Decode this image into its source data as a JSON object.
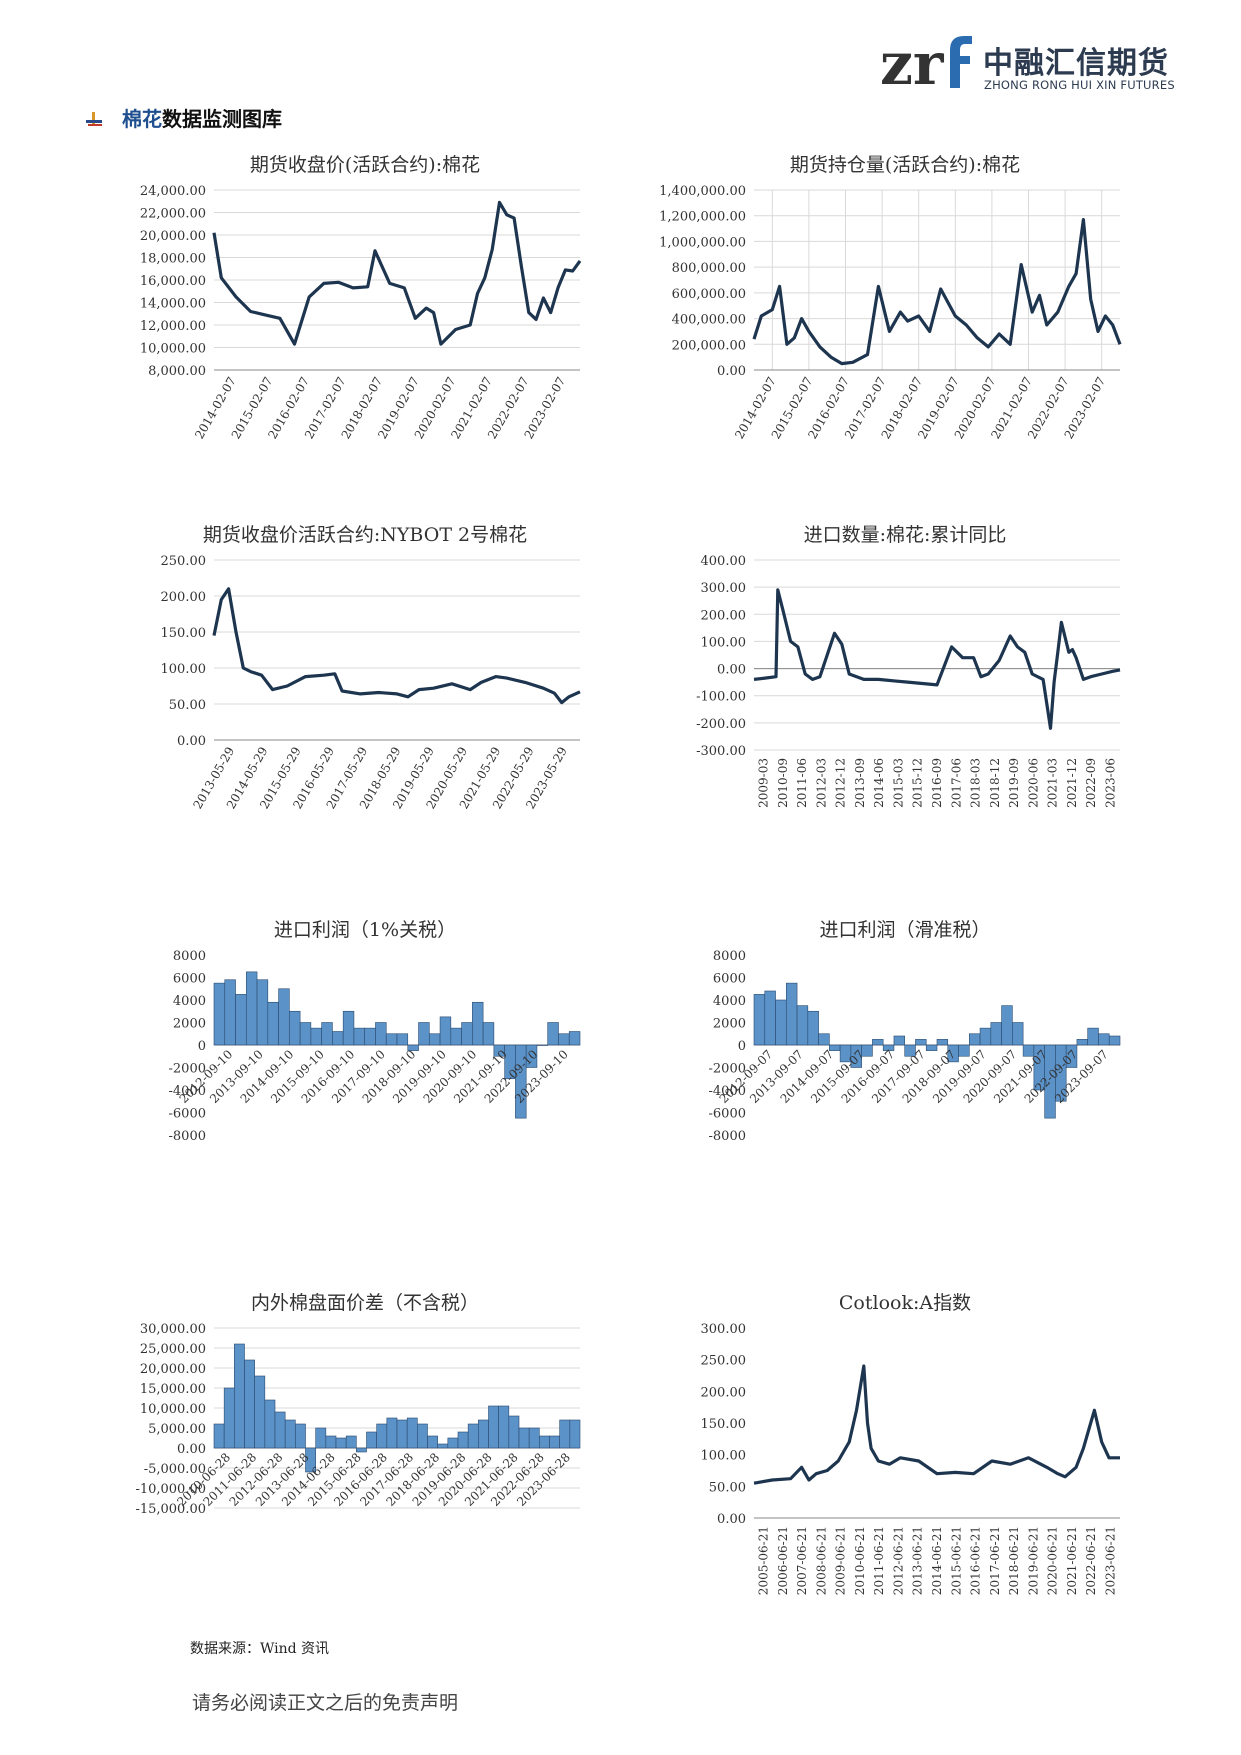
{
  "logo": {
    "cn": "中融汇信期货",
    "en": "ZHONG RONG HUI XIN FUTURES",
    "accent": "#2b6cb0",
    "gray": "#9aa3ad"
  },
  "section": {
    "highlight": "棉花",
    "rest": "数据监测图库"
  },
  "footer": {
    "source": "数据来源：Wind 资讯",
    "disclaimer": "请务必阅读正文之后的免责声明"
  },
  "colors": {
    "line": "#1e3550",
    "bar": "#5b92c8",
    "bar_dark": "#2a4a6e",
    "grid": "#d9d9d9"
  },
  "charts": [
    {
      "id": "c1",
      "title": "期货收盘价(活跃合约):棉花",
      "type": "line",
      "ylim": [
        8000,
        24000
      ],
      "yticks": [
        8000,
        10000,
        12000,
        14000,
        16000,
        18000,
        20000,
        22000,
        24000
      ],
      "decimals": 2,
      "xticks": [
        "2014-02-07",
        "2015-02-07",
        "2016-02-07",
        "2017-02-07",
        "2018-02-07",
        "2019-02-07",
        "2020-02-07",
        "2021-02-07",
        "2022-02-07",
        "2023-02-07"
      ],
      "xrot": -60,
      "grid": true
    },
    {
      "id": "c2",
      "title": "期货持仓量(活跃合约):棉花",
      "type": "line",
      "ylim": [
        0,
        1400000
      ],
      "yticks": [
        0,
        200000,
        400000,
        600000,
        800000,
        1000000,
        1200000,
        1400000
      ],
      "decimals": 2,
      "xticks": [
        "2014-02-07",
        "2015-02-07",
        "2016-02-07",
        "2017-02-07",
        "2018-02-07",
        "2019-02-07",
        "2020-02-07",
        "2021-02-07",
        "2022-02-07",
        "2023-02-07"
      ],
      "xrot": -60,
      "grid": true,
      "vgrid": true
    },
    {
      "id": "c3",
      "title": "期货收盘价活跃合约:NYBOT 2号棉花",
      "type": "line",
      "ylim": [
        0,
        250
      ],
      "yticks": [
        0,
        50,
        100,
        150,
        200,
        250
      ],
      "decimals": 2,
      "xticks": [
        "2013-05-29",
        "2014-05-29",
        "2015-05-29",
        "2016-05-29",
        "2017-05-29",
        "2018-05-29",
        "2019-05-29",
        "2020-05-29",
        "2021-05-29",
        "2022-05-29",
        "2023-05-29"
      ],
      "xrot": -60,
      "grid": true
    },
    {
      "id": "c4",
      "title": "进口数量:棉花:累计同比",
      "type": "line",
      "ylim": [
        -300,
        400
      ],
      "yticks": [
        -300,
        -200,
        -100,
        0,
        100,
        200,
        300,
        400
      ],
      "decimals": 2,
      "xticks": [
        "2009-03",
        "2010-09",
        "2011-06",
        "2012-03",
        "2012-12",
        "2013-09",
        "2014-06",
        "2015-03",
        "2015-12",
        "2016-09",
        "2017-06",
        "2018-03",
        "2018-12",
        "2019-09",
        "2020-06",
        "2021-03",
        "2021-12",
        "2022-09",
        "2023-06"
      ],
      "xrot": -90,
      "xaxis_at_zero": true,
      "grid": true
    },
    {
      "id": "c5",
      "title": "进口利润（1%关税）",
      "type": "bar",
      "ylim": [
        -8000,
        8000
      ],
      "yticks": [
        -8000,
        -6000,
        -4000,
        -2000,
        0,
        2000,
        4000,
        6000,
        8000
      ],
      "decimals": 0,
      "xticks": [
        "2012-09-10",
        "2013-09-10",
        "2014-09-10",
        "2015-09-10",
        "2016-09-10",
        "2017-09-10",
        "2018-09-10",
        "2019-09-10",
        "2020-09-10",
        "2021-09-10",
        "2022-09-10",
        "2023-09-10"
      ],
      "xrot": -45,
      "xaxis_at_zero": true,
      "grid": false
    },
    {
      "id": "c6",
      "title": "进口利润（滑准税）",
      "type": "bar",
      "ylim": [
        -8000,
        8000
      ],
      "yticks": [
        -8000,
        -6000,
        -4000,
        -2000,
        0,
        2000,
        4000,
        6000,
        8000
      ],
      "decimals": 0,
      "xticks": [
        "2012-09-07",
        "2013-09-07",
        "2014-09-07",
        "2015-09-07",
        "2016-09-07",
        "2017-09-07",
        "2018-09-07",
        "2019-09-07",
        "2020-09-07",
        "2021-09-07",
        "2022-09-07",
        "2023-09-07"
      ],
      "xrot": -45,
      "xaxis_at_zero": true,
      "grid": false
    },
    {
      "id": "c7",
      "title": "内外棉盘面价差（不含税）",
      "type": "bar",
      "ylim": [
        -15000,
        30000
      ],
      "yticks": [
        -15000,
        -10000,
        -5000,
        0,
        5000,
        10000,
        15000,
        20000,
        25000,
        30000
      ],
      "decimals": 2,
      "xticks": [
        "2010-06-28",
        "2011-06-28",
        "2012-06-28",
        "2013-06-28",
        "2014-06-28",
        "2015-06-28",
        "2016-06-28",
        "2017-06-28",
        "2018-06-28",
        "2019-06-28",
        "2020-06-28",
        "2021-06-28",
        "2022-06-28",
        "2023-06-28"
      ],
      "xrot": -45,
      "xaxis_at_zero": true,
      "grid": true
    },
    {
      "id": "c8",
      "title": "Cotlook:A指数",
      "type": "line",
      "ylim": [
        0,
        300
      ],
      "yticks": [
        0,
        50,
        100,
        150,
        200,
        250,
        300
      ],
      "decimals": 2,
      "xticks": [
        "2005-06-21",
        "2006-06-21",
        "2007-06-21",
        "2008-06-21",
        "2009-06-21",
        "2010-06-21",
        "2011-06-21",
        "2012-06-21",
        "2013-06-21",
        "2014-06-21",
        "2015-06-21",
        "2016-06-21",
        "2017-06-21",
        "2018-06-21",
        "2019-06-21",
        "2020-06-21",
        "2021-06-21",
        "2022-06-21",
        "2023-06-21"
      ],
      "xrot": -90,
      "grid": false
    }
  ],
  "chart_data": [
    {
      "type": "line",
      "title": "期货收盘价(活跃合约):棉花",
      "ylim": [
        8000,
        24000
      ],
      "x": [
        0,
        0.02,
        0.06,
        0.1,
        0.14,
        0.18,
        0.22,
        0.26,
        0.3,
        0.34,
        0.38,
        0.42,
        0.44,
        0.48,
        0.52,
        0.55,
        0.58,
        0.6,
        0.62,
        0.66,
        0.7,
        0.72,
        0.74,
        0.76,
        0.78,
        0.8,
        0.82,
        0.84,
        0.86,
        0.88,
        0.9,
        0.92,
        0.94,
        0.96,
        0.98,
        1
      ],
      "y": [
        20200,
        16200,
        14500,
        13200,
        12900,
        12600,
        10300,
        14500,
        15700,
        15800,
        15300,
        15400,
        18600,
        15700,
        15300,
        12600,
        13500,
        13100,
        10300,
        11600,
        12000,
        14800,
        16200,
        18700,
        22900,
        21800,
        21500,
        17200,
        13100,
        12500,
        14400,
        13100,
        15300,
        16900,
        16800,
        17700
      ]
    },
    {
      "type": "line",
      "title": "期货持仓量(活跃合约):棉花",
      "ylim": [
        0,
        1400000
      ],
      "x": [
        0,
        0.02,
        0.05,
        0.07,
        0.09,
        0.11,
        0.13,
        0.15,
        0.18,
        0.21,
        0.24,
        0.27,
        0.31,
        0.34,
        0.37,
        0.4,
        0.42,
        0.45,
        0.48,
        0.51,
        0.55,
        0.58,
        0.61,
        0.64,
        0.67,
        0.7,
        0.73,
        0.76,
        0.78,
        0.8,
        0.83,
        0.86,
        0.88,
        0.9,
        0.92,
        0.94,
        0.96,
        0.98,
        1
      ],
      "y": [
        240000,
        420000,
        470000,
        650000,
        200000,
        250000,
        400000,
        300000,
        180000,
        100000,
        50000,
        60000,
        120000,
        650000,
        300000,
        450000,
        380000,
        420000,
        300000,
        630000,
        420000,
        350000,
        250000,
        180000,
        280000,
        200000,
        820000,
        450000,
        580000,
        350000,
        450000,
        650000,
        750000,
        1170000,
        550000,
        300000,
        420000,
        350000,
        200000
      ]
    },
    {
      "type": "line",
      "title": "期货收盘价活跃合约:NYBOT 2号棉花",
      "ylim": [
        0,
        250
      ],
      "x": [
        0,
        0.02,
        0.04,
        0.06,
        0.08,
        0.1,
        0.13,
        0.16,
        0.2,
        0.25,
        0.3,
        0.33,
        0.35,
        0.4,
        0.45,
        0.5,
        0.53,
        0.56,
        0.6,
        0.65,
        0.7,
        0.73,
        0.77,
        0.8,
        0.85,
        0.9,
        0.93,
        0.95,
        0.97,
        1
      ],
      "y": [
        145,
        195,
        210,
        150,
        100,
        95,
        90,
        70,
        75,
        88,
        90,
        92,
        68,
        64,
        66,
        64,
        60,
        70,
        72,
        78,
        70,
        80,
        88,
        86,
        80,
        72,
        65,
        52,
        60,
        67
      ]
    },
    {
      "type": "line",
      "title": "进口数量:棉花:累计同比",
      "ylim": [
        -300,
        400
      ],
      "x": [
        0,
        0.03,
        0.06,
        0.065,
        0.08,
        0.1,
        0.12,
        0.14,
        0.16,
        0.18,
        0.2,
        0.22,
        0.24,
        0.26,
        0.3,
        0.34,
        0.38,
        0.42,
        0.46,
        0.5,
        0.54,
        0.57,
        0.6,
        0.62,
        0.64,
        0.67,
        0.7,
        0.72,
        0.74,
        0.76,
        0.79,
        0.81,
        0.82,
        0.83,
        0.84,
        0.86,
        0.87,
        0.88,
        0.9,
        0.92,
        0.95,
        0.98,
        1
      ],
      "y": [
        -40,
        -35,
        -30,
        290,
        210,
        100,
        80,
        -20,
        -40,
        -30,
        50,
        130,
        90,
        -20,
        -40,
        -40,
        -45,
        -50,
        -55,
        -60,
        80,
        40,
        40,
        -30,
        -20,
        30,
        120,
        80,
        60,
        -20,
        -40,
        -220,
        -50,
        60,
        170,
        60,
        70,
        40,
        -40,
        -30,
        -20,
        -10,
        -5
      ]
    },
    {
      "type": "bar",
      "title": "进口利润（1%关税）",
      "ylim": [
        -8000,
        8000
      ],
      "x": [
        0,
        0.04,
        0.08,
        0.1,
        0.12,
        0.15,
        0.18,
        0.22,
        0.26,
        0.3,
        0.34,
        0.38,
        0.42,
        0.46,
        0.5,
        0.54,
        0.58,
        0.62,
        0.66,
        0.7,
        0.74,
        0.78,
        0.8,
        0.82,
        0.84,
        0.86,
        0.87,
        0.88,
        0.9,
        0.92,
        0.94,
        0.96,
        0.98,
        1
      ],
      "y": [
        5500,
        5800,
        4500,
        6500,
        5800,
        3800,
        5000,
        3000,
        2000,
        1500,
        2000,
        1200,
        3000,
        1500,
        1500,
        2000,
        1000,
        1000,
        -500,
        2000,
        1000,
        2500,
        1500,
        2000,
        3800,
        2000,
        -1000,
        -3000,
        -6500,
        -2000,
        0,
        2000,
        1000,
        1200
      ]
    },
    {
      "type": "bar",
      "title": "进口利润（滑准税）",
      "ylim": [
        -8000,
        8000
      ],
      "x": [
        0,
        0.04,
        0.08,
        0.1,
        0.12,
        0.15,
        0.18,
        0.22,
        0.26,
        0.3,
        0.34,
        0.38,
        0.42,
        0.46,
        0.5,
        0.54,
        0.58,
        0.62,
        0.66,
        0.7,
        0.74,
        0.78,
        0.8,
        0.82,
        0.84,
        0.86,
        0.87,
        0.88,
        0.9,
        0.92,
        0.94,
        0.96,
        0.98,
        1
      ],
      "y": [
        4500,
        4800,
        4000,
        5500,
        3500,
        3000,
        1000,
        -500,
        -1500,
        -2000,
        -1000,
        500,
        -500,
        800,
        -1000,
        500,
        -500,
        500,
        -1500,
        -1000,
        1000,
        1500,
        2000,
        3500,
        2000,
        -1000,
        -4000,
        -6500,
        -5000,
        -2000,
        500,
        1500,
        1000,
        800
      ]
    },
    {
      "type": "bar",
      "title": "内外棉盘面价差（不含税）",
      "ylim": [
        -15000,
        30000
      ],
      "x": [
        0,
        0.03,
        0.05,
        0.06,
        0.08,
        0.1,
        0.13,
        0.16,
        0.2,
        0.22,
        0.24,
        0.26,
        0.3,
        0.34,
        0.38,
        0.42,
        0.44,
        0.46,
        0.5,
        0.54,
        0.58,
        0.62,
        0.66,
        0.68,
        0.7,
        0.72,
        0.76,
        0.8,
        0.84,
        0.86,
        0.88,
        0.9,
        0.92,
        0.94,
        0.96,
        1
      ],
      "y": [
        6000,
        15000,
        26000,
        22000,
        18000,
        12000,
        9000,
        7000,
        6000,
        -6000,
        5000,
        3000,
        2500,
        3000,
        -1000,
        4000,
        6000,
        7500,
        7000,
        7500,
        6000,
        3000,
        1000,
        2500,
        4000,
        6000,
        7000,
        10500,
        10500,
        8000,
        5000,
        5000,
        3000,
        3000,
        7000,
        7000
      ]
    },
    {
      "type": "line",
      "title": "Cotlook:A指数",
      "ylim": [
        0,
        300
      ],
      "x": [
        0,
        0.05,
        0.1,
        0.13,
        0.15,
        0.17,
        0.2,
        0.23,
        0.26,
        0.28,
        0.3,
        0.31,
        0.32,
        0.34,
        0.37,
        0.4,
        0.45,
        0.5,
        0.55,
        0.6,
        0.65,
        0.7,
        0.75,
        0.8,
        0.83,
        0.85,
        0.88,
        0.9,
        0.92,
        0.93,
        0.95,
        0.97,
        1
      ],
      "y": [
        55,
        60,
        62,
        80,
        60,
        70,
        75,
        90,
        120,
        170,
        240,
        150,
        110,
        90,
        85,
        95,
        90,
        70,
        72,
        70,
        90,
        85,
        95,
        80,
        70,
        65,
        80,
        110,
        150,
        170,
        120,
        95,
        95
      ]
    }
  ]
}
